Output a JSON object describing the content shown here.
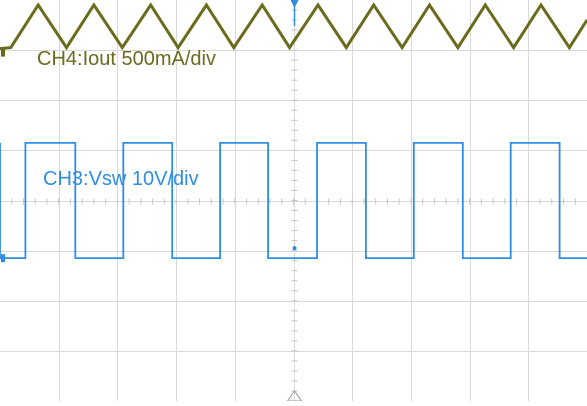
{
  "chart_data": {
    "type": "line",
    "grid": true,
    "annotations": [
      {
        "text": "CH4:Iout 500mA/div",
        "color": "#6b6b1e"
      },
      {
        "text": "CH3:Vsw 10V/div",
        "color": "#2f8de4"
      }
    ],
    "series": [
      {
        "name": "CH4:Iout 500mA/div",
        "color": "#6b6b1e",
        "shape": "triangle",
        "x": [
          -30,
          -28.9,
          -26.1,
          -23.2,
          -20.4,
          -17.5,
          -14.6,
          -11.8,
          -8.9,
          -6.1,
          -3.2,
          -0.4,
          2.5,
          5.4,
          8.2,
          11.1,
          13.9,
          16.8,
          19.6,
          22.5,
          25.3,
          28.2,
          30
        ],
        "y": [
          3.03,
          3.05,
          3.9,
          3.05,
          3.9,
          3.05,
          3.9,
          3.05,
          3.9,
          3.05,
          3.9,
          3.05,
          3.9,
          3.05,
          3.9,
          3.05,
          3.9,
          3.05,
          3.9,
          3.05,
          3.9,
          3.05,
          3.6
        ]
      },
      {
        "name": "CH3:Vsw 10V/div",
        "color": "#2f8de4",
        "shape": "square",
        "high": 1.15,
        "low": -1.15,
        "rising_edges": [
          -27.4,
          -17.4,
          -7.5,
          2.4,
          12.3,
          22.2
        ],
        "falling_edges": [
          -30,
          -22.3,
          -12.4,
          -2.6,
          7.4,
          17.3,
          27.2
        ]
      }
    ],
    "x_divisions": 10,
    "y_divisions": 8,
    "xlim": [
      -30,
      30
    ],
    "ylim": [
      -4,
      4
    ]
  }
}
